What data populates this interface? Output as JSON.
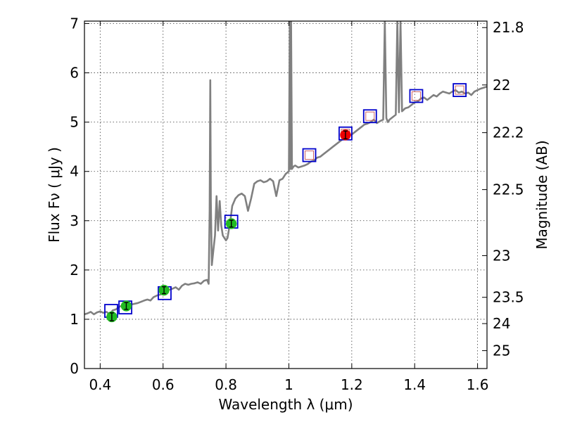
{
  "chart_data": {
    "type": "scatter",
    "xlabel": "Wavelength  λ (μm)",
    "ylabel": "Flux  Fν  ( μJy )",
    "ylabel_right": "Magnitude (AB)",
    "xlim": [
      0.35,
      1.63
    ],
    "ylim": [
      0,
      7.05
    ],
    "grid": true,
    "x_ticks": [
      0.4,
      0.6,
      0.8,
      1.0,
      1.2,
      1.4,
      1.6
    ],
    "x_tick_labels": [
      "0.4",
      "0.6",
      "0.8",
      "1",
      "1.2",
      "1.4",
      "1.6"
    ],
    "y_ticks": [
      0,
      1,
      2,
      3,
      4,
      5,
      6,
      7
    ],
    "y_tick_labels": [
      "0",
      "1",
      "2",
      "3",
      "4",
      "5",
      "6",
      "7"
    ],
    "right_ticks": [
      {
        "label": "21.8",
        "mag": 21.8
      },
      {
        "label": "22",
        "mag": 22.0
      },
      {
        "label": "22.2",
        "mag": 22.2
      },
      {
        "label": "22.5",
        "mag": 22.5
      },
      {
        "label": "23",
        "mag": 23.0
      },
      {
        "label": "23.5",
        "mag": 23.5
      },
      {
        "label": "24",
        "mag": 24.0
      },
      {
        "label": "25",
        "mag": 25.0
      }
    ],
    "colors": {
      "template": "#808080",
      "model_box": "#0000cc",
      "model_inner": "#cc6666",
      "phot_green": "#22bb22",
      "phot_red": "#ee0000"
    },
    "template_spectrum": {
      "x": [
        0.35,
        0.36,
        0.37,
        0.38,
        0.39,
        0.4,
        0.41,
        0.42,
        0.43,
        0.44,
        0.45,
        0.46,
        0.47,
        0.48,
        0.5,
        0.52,
        0.54,
        0.55,
        0.56,
        0.57,
        0.58,
        0.59,
        0.6,
        0.61,
        0.62,
        0.63,
        0.64,
        0.65,
        0.66,
        0.67,
        0.68,
        0.69,
        0.7,
        0.71,
        0.72,
        0.73,
        0.74,
        0.745,
        0.748,
        0.75,
        0.752,
        0.755,
        0.76,
        0.765,
        0.77,
        0.775,
        0.78,
        0.785,
        0.79,
        0.8,
        0.805,
        0.81,
        0.815,
        0.82,
        0.83,
        0.84,
        0.85,
        0.86,
        0.87,
        0.88,
        0.89,
        0.9,
        0.91,
        0.92,
        0.93,
        0.94,
        0.95,
        0.96,
        0.97,
        0.98,
        0.99,
        1.0,
        1.003,
        1.005,
        1.007,
        1.01,
        1.015,
        1.02,
        1.03,
        1.04,
        1.05,
        1.06,
        1.07,
        1.08,
        1.09,
        1.1,
        1.11,
        1.12,
        1.13,
        1.14,
        1.15,
        1.16,
        1.17,
        1.18,
        1.19,
        1.2,
        1.21,
        1.22,
        1.23,
        1.24,
        1.25,
        1.26,
        1.27,
        1.28,
        1.29,
        1.3,
        1.305,
        1.31,
        1.315,
        1.32,
        1.33,
        1.34,
        1.345,
        1.35,
        1.355,
        1.36,
        1.37,
        1.38,
        1.39,
        1.4,
        1.41,
        1.42,
        1.43,
        1.44,
        1.45,
        1.46,
        1.47,
        1.48,
        1.49,
        1.5,
        1.51,
        1.52,
        1.53,
        1.54,
        1.55,
        1.56,
        1.57,
        1.58,
        1.59,
        1.6,
        1.61,
        1.62,
        1.63
      ],
      "y": [
        1.1,
        1.12,
        1.15,
        1.1,
        1.14,
        1.16,
        1.13,
        1.15,
        1.1,
        1.18,
        1.2,
        1.25,
        1.28,
        1.3,
        1.3,
        1.33,
        1.38,
        1.4,
        1.38,
        1.45,
        1.48,
        1.5,
        1.52,
        1.58,
        1.6,
        1.62,
        1.65,
        1.6,
        1.68,
        1.72,
        1.7,
        1.72,
        1.73,
        1.75,
        1.72,
        1.78,
        1.8,
        1.72,
        3.2,
        5.85,
        3.4,
        2.1,
        2.4,
        2.7,
        3.5,
        2.8,
        3.4,
        2.9,
        2.7,
        2.6,
        2.65,
        2.85,
        3.05,
        3.3,
        3.45,
        3.52,
        3.55,
        3.5,
        3.2,
        3.45,
        3.75,
        3.8,
        3.82,
        3.78,
        3.8,
        3.85,
        3.8,
        3.5,
        3.82,
        3.85,
        3.95,
        4.0,
        7.05,
        4.05,
        7.05,
        4.05,
        4.1,
        4.12,
        4.08,
        4.1,
        4.12,
        4.15,
        4.2,
        4.22,
        4.28,
        4.3,
        4.35,
        4.4,
        4.45,
        4.5,
        4.55,
        4.6,
        4.65,
        4.7,
        4.72,
        4.75,
        4.8,
        4.85,
        4.9,
        4.95,
        4.97,
        5.0,
        5.05,
        4.98,
        5.02,
        5.05,
        7.05,
        5.08,
        5.0,
        5.05,
        5.1,
        5.15,
        7.05,
        5.2,
        7.05,
        5.22,
        5.28,
        5.3,
        5.35,
        5.4,
        5.42,
        5.48,
        5.5,
        5.45,
        5.5,
        5.55,
        5.52,
        5.58,
        5.62,
        5.6,
        5.58,
        5.62,
        5.65,
        5.6,
        5.62,
        5.58,
        5.6,
        5.55,
        5.62,
        5.65,
        5.68,
        5.7,
        5.72
      ]
    },
    "series": [
      {
        "marker": "square",
        "points": [
          {
            "x": 0.435,
            "y": 1.17
          },
          {
            "x": 0.48,
            "y": 1.24
          },
          {
            "x": 0.605,
            "y": 1.53
          },
          {
            "x": 0.817,
            "y": 2.98
          },
          {
            "x": 1.065,
            "y": 4.33
          },
          {
            "x": 1.18,
            "y": 4.77
          },
          {
            "x": 1.258,
            "y": 5.12
          },
          {
            "x": 1.405,
            "y": 5.53
          },
          {
            "x": 1.543,
            "y": 5.65
          }
        ]
      },
      {
        "marker": "circle",
        "color": "#22bb22",
        "points": [
          {
            "x": 0.437,
            "y": 1.05,
            "err": 0.08
          },
          {
            "x": 0.483,
            "y": 1.27,
            "err": 0.07
          },
          {
            "x": 0.603,
            "y": 1.59,
            "err": 0.07
          },
          {
            "x": 0.817,
            "y": 2.94,
            "err": 0.07
          }
        ]
      },
      {
        "marker": "circle",
        "color": "#ee0000",
        "points": [
          {
            "x": 1.18,
            "y": 4.74,
            "err": 0.08
          }
        ]
      }
    ]
  }
}
